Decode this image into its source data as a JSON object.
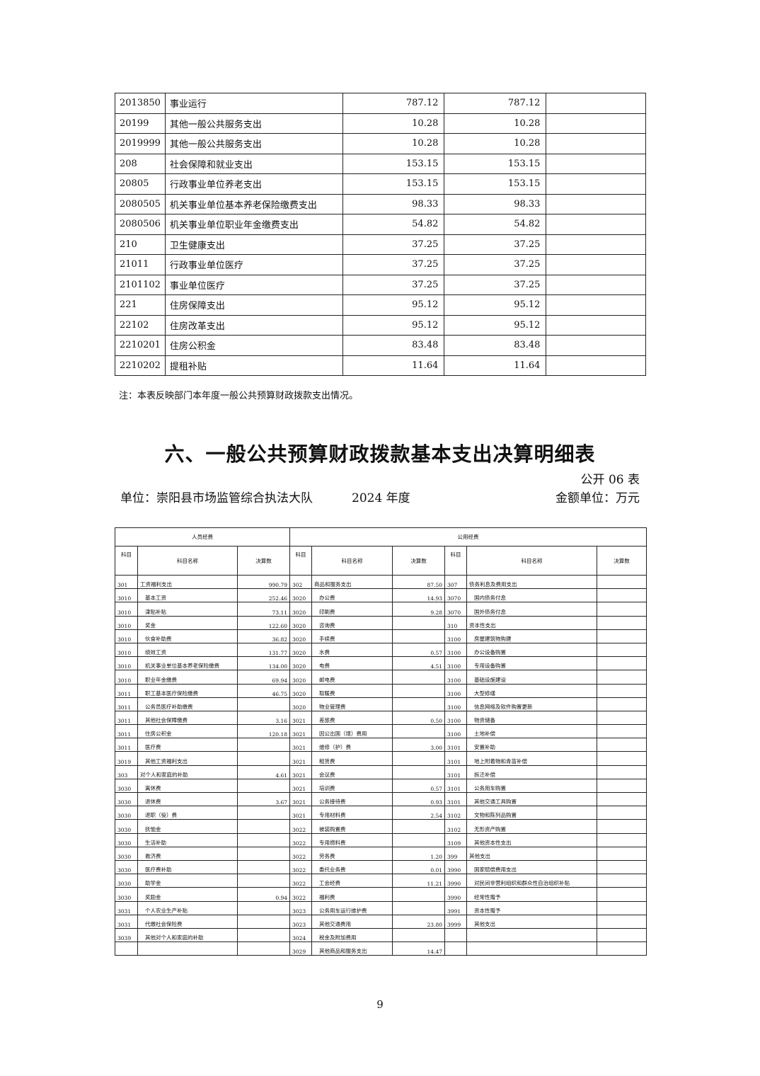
{
  "upper_table": {
    "rows": [
      [
        "2013850",
        "事业运行",
        "787.12",
        "787.12",
        ""
      ],
      [
        "20199",
        "其他一般公共服务支出",
        "10.28",
        "10.28",
        ""
      ],
      [
        "2019999",
        "其他一般公共服务支出",
        "10.28",
        "10.28",
        ""
      ],
      [
        "208",
        "社会保障和就业支出",
        "153.15",
        "153.15",
        ""
      ],
      [
        "20805",
        "行政事业单位养老支出",
        "153.15",
        "153.15",
        ""
      ],
      [
        "2080505",
        "机关事业单位基本养老保险缴费支出",
        "98.33",
        "98.33",
        ""
      ],
      [
        "2080506",
        "机关事业单位职业年金缴费支出",
        "54.82",
        "54.82",
        ""
      ],
      [
        "210",
        "卫生健康支出",
        "37.25",
        "37.25",
        ""
      ],
      [
        "21011",
        "行政事业单位医疗",
        "37.25",
        "37.25",
        ""
      ],
      [
        "2101102",
        "事业单位医疗",
        "37.25",
        "37.25",
        ""
      ],
      [
        "221",
        "住房保障支出",
        "95.12",
        "95.12",
        ""
      ],
      [
        "22102",
        "住房改革支出",
        "95.12",
        "95.12",
        ""
      ],
      [
        "2210201",
        "住房公积金",
        "83.48",
        "83.48",
        ""
      ],
      [
        "2210202",
        "提租补贴",
        "11.64",
        "11.64",
        ""
      ]
    ],
    "note": "注：本表反映部门本年度一般公共预算财政拨款支出情况。"
  },
  "section_title": "六、一般公共预算财政拨款基本支出决算明细表",
  "form_number": "公开 06 表",
  "unit_label": "单位：崇阳县市场监管综合执法大队",
  "year_label": "2024 年度",
  "money_unit": "金额单位：万元",
  "lower_table": {
    "group_headers": {
      "personnel": "人员经费",
      "public": "公用经费"
    },
    "column_headers": {
      "code": "科目",
      "name": "科目名称",
      "amount": "决算数"
    },
    "personnel": [
      [
        "301",
        "工资福利支出",
        "990.79",
        0
      ],
      [
        "3010",
        "基本工资",
        "252.46",
        1
      ],
      [
        "3010",
        "津贴补贴",
        "73.11",
        1
      ],
      [
        "3010",
        "奖金",
        "122.60",
        1
      ],
      [
        "3010",
        "伙食补助费",
        "36.82",
        1
      ],
      [
        "3010",
        "绩效工资",
        "131.77",
        1
      ],
      [
        "3010",
        "机关事业单位基本养老保险缴费",
        "134.00",
        1
      ],
      [
        "3010",
        "职业年金缴费",
        "69.94",
        1
      ],
      [
        "3011",
        "职工基本医疗保险缴费",
        "46.75",
        1
      ],
      [
        "3011",
        "公务员医疗补助缴费",
        "",
        1
      ],
      [
        "3011",
        "其他社会保障缴费",
        "3.16",
        1
      ],
      [
        "3011",
        "住房公积金",
        "120.18",
        1
      ],
      [
        "3011",
        "医疗费",
        "",
        1
      ],
      [
        "3019",
        "其他工资福利支出",
        "",
        1
      ],
      [
        "303",
        "对个人和家庭的补助",
        "4.61",
        0
      ],
      [
        "3030",
        "离休费",
        "",
        1
      ],
      [
        "3030",
        "退休费",
        "3.67",
        1
      ],
      [
        "3030",
        "退职（役）费",
        "",
        1
      ],
      [
        "3030",
        "抚恤金",
        "",
        1
      ],
      [
        "3030",
        "生活补助",
        "",
        1
      ],
      [
        "3030",
        "救济费",
        "",
        1
      ],
      [
        "3030",
        "医疗费补助",
        "",
        1
      ],
      [
        "3030",
        "助学金",
        "",
        1
      ],
      [
        "3030",
        "奖励金",
        "0.94",
        1
      ],
      [
        "3031",
        "个人农业生产补贴",
        "",
        1
      ],
      [
        "3031",
        "代缴社会保险费",
        "",
        1
      ],
      [
        "3039",
        "其他对个人和家庭的补助",
        "",
        1
      ],
      [
        "",
        "",
        "",
        0
      ]
    ],
    "public_a": [
      [
        "302",
        "商品和服务支出",
        "87.50",
        0
      ],
      [
        "3020",
        "办公费",
        "14.93",
        1
      ],
      [
        "3020",
        "印刷费",
        "9.28",
        1
      ],
      [
        "3020",
        "咨询费",
        "",
        1
      ],
      [
        "3020",
        "手续费",
        "",
        1
      ],
      [
        "3020",
        "水费",
        "0.57",
        1
      ],
      [
        "3020",
        "电费",
        "4.51",
        1
      ],
      [
        "3020",
        "邮电费",
        "",
        1
      ],
      [
        "3020",
        "取暖费",
        "",
        1
      ],
      [
        "3020",
        "物业管理费",
        "",
        1
      ],
      [
        "3021",
        "差旅费",
        "0.50",
        1
      ],
      [
        "3021",
        "因公出国（境）费用",
        "",
        1
      ],
      [
        "3021",
        "维修（护）费",
        "3.00",
        1
      ],
      [
        "3021",
        "租赁费",
        "",
        1
      ],
      [
        "3021",
        "会议费",
        "",
        1
      ],
      [
        "3021",
        "培训费",
        "0.57",
        1
      ],
      [
        "3021",
        "公务接待费",
        "0.93",
        1
      ],
      [
        "3021",
        "专用材料费",
        "2.54",
        1
      ],
      [
        "3022",
        "被装购置费",
        "",
        1
      ],
      [
        "3022",
        "专用燃料费",
        "",
        1
      ],
      [
        "3022",
        "劳务费",
        "1.20",
        1
      ],
      [
        "3022",
        "委托业务费",
        "0.01",
        1
      ],
      [
        "3022",
        "工会经费",
        "11.21",
        1
      ],
      [
        "3022",
        "福利费",
        "",
        1
      ],
      [
        "3023",
        "公务用车运行维护费",
        "",
        1
      ],
      [
        "3023",
        "其他交通费用",
        "23.80",
        1
      ],
      [
        "3024",
        "税金及附加费用",
        "",
        1
      ],
      [
        "3029",
        "其他商品和服务支出",
        "14.47",
        1
      ]
    ],
    "public_b": [
      [
        "307",
        "债务利息及费用支出",
        "",
        0
      ],
      [
        "3070",
        "国内债务付息",
        "",
        1
      ],
      [
        "3070",
        "国外债务付息",
        "",
        1
      ],
      [
        "310",
        "资本性支出",
        "",
        0
      ],
      [
        "3100",
        "房屋建筑物购建",
        "",
        1
      ],
      [
        "3100",
        "办公设备购置",
        "",
        1
      ],
      [
        "3100",
        "专用设备购置",
        "",
        1
      ],
      [
        "3100",
        "基础设施建设",
        "",
        1
      ],
      [
        "3100",
        "大型修缮",
        "",
        1
      ],
      [
        "3100",
        "信息网络及软件购置更新",
        "",
        1
      ],
      [
        "3100",
        "物资储备",
        "",
        1
      ],
      [
        "3100",
        "土地补偿",
        "",
        1
      ],
      [
        "3101",
        "安置补助",
        "",
        1
      ],
      [
        "3101",
        "地上附着物和青苗补偿",
        "",
        1
      ],
      [
        "3101",
        "拆迁补偿",
        "",
        1
      ],
      [
        "3101",
        "公务用车购置",
        "",
        1
      ],
      [
        "3101",
        "其他交通工具购置",
        "",
        1
      ],
      [
        "3102",
        "文物和陈列品购置",
        "",
        1
      ],
      [
        "3102",
        "无形资产购置",
        "",
        1
      ],
      [
        "3109",
        "其他资本性支出",
        "",
        1
      ],
      [
        "399",
        "其他支出",
        "",
        0
      ],
      [
        "3990",
        "国家赔偿费用支出",
        "",
        1
      ],
      [
        "3990",
        "对民间非营利组织和群众性自治组织补贴",
        "",
        1
      ],
      [
        "3990",
        "经常性赠予",
        "",
        1
      ],
      [
        "3991",
        "资本性赠予",
        "",
        1
      ],
      [
        "3999",
        "其他支出",
        "",
        1
      ],
      [
        "",
        "",
        "",
        0
      ],
      [
        "",
        "",
        "",
        0
      ]
    ]
  },
  "page_number": "9"
}
